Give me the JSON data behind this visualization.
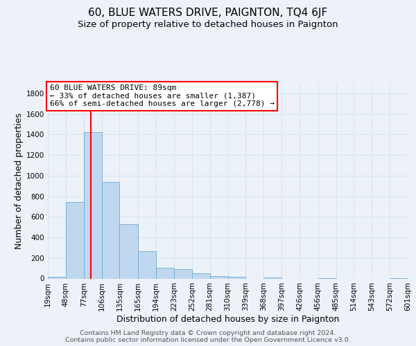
{
  "title": "60, BLUE WATERS DRIVE, PAIGNTON, TQ4 6JF",
  "subtitle": "Size of property relative to detached houses in Paignton",
  "xlabel": "Distribution of detached houses by size in Paignton",
  "ylabel": "Number of detached properties",
  "bin_edges": [
    19,
    48,
    77,
    106,
    135,
    165,
    194,
    223,
    252,
    281,
    310,
    339,
    368,
    397,
    426,
    456,
    485,
    514,
    543,
    572,
    601
  ],
  "bin_labels": [
    "19sqm",
    "48sqm",
    "77sqm",
    "106sqm",
    "135sqm",
    "165sqm",
    "194sqm",
    "223sqm",
    "252sqm",
    "281sqm",
    "310sqm",
    "339sqm",
    "368sqm",
    "397sqm",
    "426sqm",
    "456sqm",
    "485sqm",
    "514sqm",
    "543sqm",
    "572sqm",
    "601sqm"
  ],
  "bar_heights": [
    20,
    740,
    1425,
    940,
    530,
    265,
    105,
    90,
    50,
    25,
    20,
    0,
    10,
    0,
    0,
    5,
    0,
    0,
    0,
    5
  ],
  "bar_color": "#c0d8ef",
  "bar_edge_color": "#6aaad4",
  "property_line_x": 89,
  "property_line_color": "red",
  "annotation_line1": "60 BLUE WATERS DRIVE: 89sqm",
  "annotation_line2": "← 33% of detached houses are smaller (1,387)",
  "annotation_line3": "66% of semi-detached houses are larger (2,778) →",
  "annotation_box_facecolor": "white",
  "annotation_box_edgecolor": "red",
  "ylim_max": 1900,
  "yticks": [
    0,
    200,
    400,
    600,
    800,
    1000,
    1200,
    1400,
    1600,
    1800
  ],
  "footer_line1": "Contains HM Land Registry data © Crown copyright and database right 2024.",
  "footer_line2": "Contains public sector information licensed under the Open Government Licence v3.0.",
  "background_color": "#edf2f8",
  "grid_color": "#d8e4f0",
  "title_fontsize": 11,
  "subtitle_fontsize": 9.5,
  "ylabel_fontsize": 9,
  "xlabel_fontsize": 9,
  "tick_fontsize": 7.5,
  "annotation_fontsize": 8,
  "footer_fontsize": 6.8
}
